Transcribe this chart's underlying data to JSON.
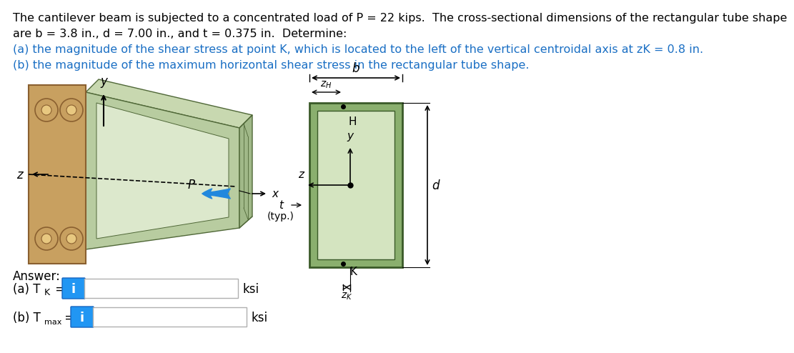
{
  "text_line1": "The cantilever beam is subjected to a concentrated load of P = 22 kips.  The cross-sectional dimensions of the rectangular tube shape",
  "text_line2": "are b = 3.8 in., d = 7.00 in., and t = 0.375 in.  Determine:",
  "text_line3a": "(a) the magnitude of the shear stress at point K, which is located to the left of the vertical centroidal axis at z",
  "text_line3b": "K",
  "text_line3c": " = 0.8 in.",
  "text_line4": "(b) the magnitude of the maximum horizontal shear stress in the rectangular tube shape.",
  "answer_label": "Answer:",
  "unit": "ksi",
  "bg_color": "#ffffff",
  "black": "#000000",
  "blue_text": "#1a6fc4",
  "blue_btn": "#2196F3",
  "flange_color": "#c8a060",
  "flange_edge": "#8a6030",
  "bolt_color": "#c8a060",
  "bolt_inner": "#e8c880",
  "beam_top": "#c8d8b0",
  "beam_front": "#b8cca0",
  "beam_side": "#a0b888",
  "beam_back": "#d0dfc0",
  "beam_edge": "#506838",
  "cs_outer": "#8aaf6e",
  "cs_inner": "#d4e4c0",
  "cs_edge": "#3a5a28"
}
